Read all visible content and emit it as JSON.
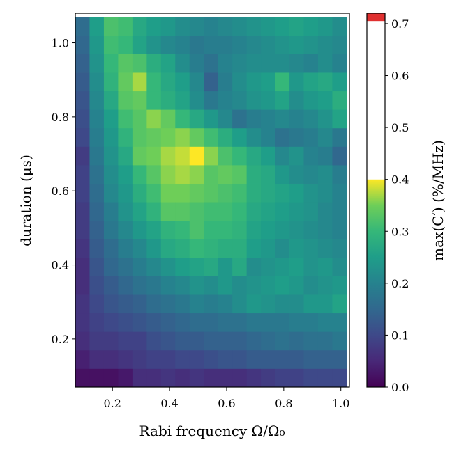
{
  "chart_data": {
    "type": "heatmap",
    "xlabel": "Rabi frequency Ω/Ω₀",
    "ylabel": "duration (μs)",
    "colorbar_label": "max(C′) (%/MHz)",
    "colormap": "viridis",
    "x_range": [
      0.07,
      1.03
    ],
    "y_range": [
      0.07,
      1.08
    ],
    "color_range": [
      0.0,
      0.72
    ],
    "x_ticks": [
      "0.2",
      "0.4",
      "0.6",
      "0.8",
      "1.0"
    ],
    "y_ticks": [
      "0.2",
      "0.4",
      "0.6",
      "0.8",
      "1.0"
    ],
    "colorbar_ticks": [
      "0.0",
      "0.1",
      "0.2",
      "0.3",
      "0.4",
      "0.5",
      "0.6",
      "0.7"
    ],
    "colorbar_segments": [
      {
        "from": 0.0,
        "to": 0.4,
        "color": "viridis"
      },
      {
        "from": 0.4,
        "to": 0.705,
        "color": "#ffffff"
      },
      {
        "from": 0.705,
        "to": 0.72,
        "color": "#e03030"
      }
    ],
    "x_cols": [
      0.095,
      0.145,
      0.195,
      0.245,
      0.295,
      0.345,
      0.395,
      0.445,
      0.495,
      0.545,
      0.595,
      0.645,
      0.695,
      0.745,
      0.795,
      0.845,
      0.895,
      0.945,
      0.995
    ],
    "y_rows": [
      0.095,
      0.145,
      0.195,
      0.245,
      0.295,
      0.345,
      0.395,
      0.445,
      0.495,
      0.545,
      0.595,
      0.645,
      0.695,
      0.745,
      0.795,
      0.845,
      0.895,
      0.945,
      0.995,
      1.045
    ],
    "values": [
      [
        0.02,
        0.02,
        0.02,
        0.03,
        0.06,
        0.06,
        0.07,
        0.06,
        0.07,
        0.06,
        0.06,
        0.06,
        0.07,
        0.08,
        0.09,
        0.09,
        0.1,
        0.1,
        0.1
      ],
      [
        0.04,
        0.06,
        0.06,
        0.07,
        0.08,
        0.09,
        0.09,
        0.1,
        0.1,
        0.11,
        0.12,
        0.12,
        0.13,
        0.13,
        0.13,
        0.13,
        0.14,
        0.14,
        0.14
      ],
      [
        0.06,
        0.08,
        0.08,
        0.09,
        0.09,
        0.11,
        0.12,
        0.13,
        0.13,
        0.14,
        0.14,
        0.14,
        0.15,
        0.16,
        0.17,
        0.16,
        0.17,
        0.17,
        0.18
      ],
      [
        0.07,
        0.09,
        0.1,
        0.11,
        0.12,
        0.13,
        0.14,
        0.15,
        0.16,
        0.16,
        0.17,
        0.17,
        0.18,
        0.18,
        0.18,
        0.19,
        0.19,
        0.2,
        0.2
      ],
      [
        0.07,
        0.1,
        0.12,
        0.13,
        0.14,
        0.16,
        0.17,
        0.18,
        0.2,
        0.19,
        0.2,
        0.22,
        0.24,
        0.23,
        0.22,
        0.22,
        0.24,
        0.24,
        0.26
      ],
      [
        0.06,
        0.11,
        0.13,
        0.15,
        0.17,
        0.18,
        0.2,
        0.21,
        0.23,
        0.22,
        0.24,
        0.22,
        0.23,
        0.24,
        0.25,
        0.24,
        0.22,
        0.23,
        0.24
      ],
      [
        0.06,
        0.12,
        0.15,
        0.17,
        0.19,
        0.21,
        0.23,
        0.25,
        0.26,
        0.27,
        0.24,
        0.27,
        0.22,
        0.23,
        0.24,
        0.25,
        0.23,
        0.24,
        0.22
      ],
      [
        0.07,
        0.13,
        0.16,
        0.19,
        0.21,
        0.24,
        0.27,
        0.28,
        0.3,
        0.29,
        0.28,
        0.28,
        0.25,
        0.24,
        0.22,
        0.24,
        0.23,
        0.22,
        0.21
      ],
      [
        0.08,
        0.14,
        0.18,
        0.21,
        0.24,
        0.26,
        0.29,
        0.3,
        0.32,
        0.3,
        0.3,
        0.29,
        0.26,
        0.25,
        0.24,
        0.23,
        0.22,
        0.21,
        0.2
      ],
      [
        0.08,
        0.15,
        0.19,
        0.23,
        0.26,
        0.29,
        0.33,
        0.33,
        0.32,
        0.31,
        0.31,
        0.3,
        0.27,
        0.26,
        0.25,
        0.24,
        0.23,
        0.21,
        0.2
      ],
      [
        0.09,
        0.16,
        0.21,
        0.24,
        0.28,
        0.31,
        0.35,
        0.35,
        0.34,
        0.33,
        0.32,
        0.31,
        0.28,
        0.27,
        0.26,
        0.25,
        0.23,
        0.22,
        0.2
      ],
      [
        0.09,
        0.17,
        0.22,
        0.25,
        0.3,
        0.33,
        0.36,
        0.37,
        0.36,
        0.33,
        0.34,
        0.33,
        0.28,
        0.27,
        0.24,
        0.22,
        0.21,
        0.22,
        0.19
      ],
      [
        0.08,
        0.18,
        0.23,
        0.27,
        0.34,
        0.35,
        0.37,
        0.38,
        0.4,
        0.36,
        0.32,
        0.3,
        0.27,
        0.25,
        0.21,
        0.23,
        0.2,
        0.19,
        0.15
      ],
      [
        0.1,
        0.19,
        0.24,
        0.29,
        0.33,
        0.34,
        0.35,
        0.36,
        0.34,
        0.31,
        0.28,
        0.25,
        0.22,
        0.2,
        0.17,
        0.18,
        0.19,
        0.21,
        0.18
      ],
      [
        0.11,
        0.2,
        0.25,
        0.31,
        0.33,
        0.36,
        0.34,
        0.3,
        0.27,
        0.24,
        0.21,
        0.17,
        0.19,
        0.2,
        0.21,
        0.2,
        0.21,
        0.23,
        0.26
      ],
      [
        0.12,
        0.21,
        0.27,
        0.33,
        0.34,
        0.3,
        0.28,
        0.26,
        0.22,
        0.18,
        0.2,
        0.21,
        0.23,
        0.24,
        0.26,
        0.22,
        0.24,
        0.25,
        0.28
      ],
      [
        0.13,
        0.22,
        0.29,
        0.34,
        0.37,
        0.3,
        0.27,
        0.25,
        0.21,
        0.14,
        0.19,
        0.22,
        0.24,
        0.25,
        0.3,
        0.24,
        0.26,
        0.27,
        0.25
      ],
      [
        0.14,
        0.23,
        0.3,
        0.33,
        0.32,
        0.28,
        0.26,
        0.22,
        0.19,
        0.17,
        0.2,
        0.21,
        0.22,
        0.22,
        0.22,
        0.21,
        0.2,
        0.22,
        0.2
      ],
      [
        0.15,
        0.24,
        0.31,
        0.3,
        0.26,
        0.23,
        0.21,
        0.2,
        0.18,
        0.19,
        0.19,
        0.2,
        0.21,
        0.22,
        0.23,
        0.24,
        0.23,
        0.22,
        0.21
      ],
      [
        0.16,
        0.25,
        0.32,
        0.31,
        0.27,
        0.25,
        0.24,
        0.22,
        0.21,
        0.2,
        0.21,
        0.22,
        0.23,
        0.24,
        0.25,
        0.26,
        0.25,
        0.24,
        0.22
      ]
    ]
  }
}
